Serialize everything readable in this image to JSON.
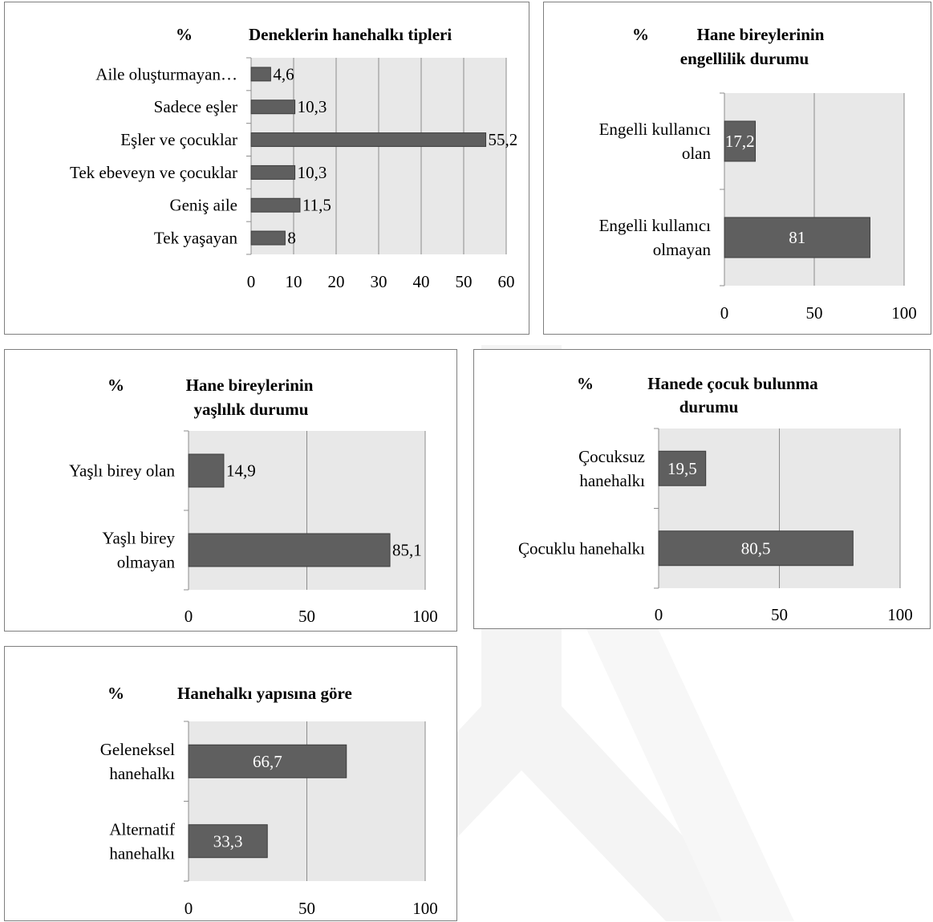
{
  "chart_data": [
    {
      "type": "bar",
      "orientation": "horizontal",
      "unit_label": "%",
      "title": "Deneklerin hanehalkı tipleri",
      "categories": [
        "Aile oluşturmayan…",
        "Sadece eşler",
        "Eşler ve çocuklar",
        "Tek ebeveyn ve çocuklar",
        "Geniş aile",
        "Tek yaşayan"
      ],
      "values": [
        4.6,
        10.3,
        55.2,
        10.3,
        11.5,
        8
      ],
      "value_labels": [
        "4,6",
        "10,3",
        "55,2",
        "10,3",
        "11,5",
        "8"
      ],
      "xlim": [
        0,
        60
      ],
      "ticks": [
        0,
        10,
        20,
        30,
        40,
        50,
        60
      ],
      "label_position": "outside",
      "bar_color": "#5f5f5f",
      "plot_bg": "#e8e8e8",
      "grid": true
    },
    {
      "type": "bar",
      "orientation": "horizontal",
      "unit_label": "%",
      "title_lines": [
        "Hane bireylerinin",
        "engellilik durumu"
      ],
      "categories": [
        [
          "Engelli kullanıcı",
          "olan"
        ],
        [
          "Engelli kullanıcı",
          "olmayan"
        ]
      ],
      "values": [
        17.2,
        81
      ],
      "value_labels": [
        "17,2",
        "81"
      ],
      "xlim": [
        0,
        100
      ],
      "ticks": [
        0,
        50,
        100
      ],
      "label_position": "inside",
      "bar_color": "#5f5f5f",
      "plot_bg": "#e8e8e8",
      "grid": true
    },
    {
      "type": "bar",
      "orientation": "horizontal",
      "unit_label": "%",
      "title_lines": [
        "Hane bireylerinin",
        "yaşlılık durumu"
      ],
      "categories": [
        [
          "Yaşlı birey olan"
        ],
        [
          "Yaşlı birey",
          "olmayan"
        ]
      ],
      "values": [
        14.9,
        85.1
      ],
      "value_labels": [
        "14,9",
        "85,1"
      ],
      "xlim": [
        0,
        100
      ],
      "ticks": [
        0,
        50,
        100
      ],
      "label_position": "outside",
      "bar_color": "#5f5f5f",
      "plot_bg": "#e8e8e8",
      "grid": true
    },
    {
      "type": "bar",
      "orientation": "horizontal",
      "unit_label": "%",
      "title_lines": [
        "Hanede çocuk bulunma",
        "durumu"
      ],
      "categories": [
        [
          "Çocuksuz",
          "hanehalkı"
        ],
        [
          "Çocuklu hanehalkı"
        ]
      ],
      "values": [
        19.5,
        80.5
      ],
      "value_labels": [
        "19,5",
        "80,5"
      ],
      "xlim": [
        0,
        100
      ],
      "ticks": [
        0,
        50,
        100
      ],
      "label_position": "inside",
      "bar_color": "#5f5f5f",
      "plot_bg": "#e8e8e8",
      "grid": true
    },
    {
      "type": "bar",
      "orientation": "horizontal",
      "unit_label": "%",
      "title": "Hanehalkı yapısına göre",
      "categories": [
        [
          "Geleneksel",
          "hanehalkı"
        ],
        [
          "Alternatif",
          "hanehalkı"
        ]
      ],
      "values": [
        66.7,
        33.3
      ],
      "value_labels": [
        "66,7",
        "33,3"
      ],
      "xlim": [
        0,
        100
      ],
      "ticks": [
        0,
        50,
        100
      ],
      "label_position": "inside",
      "bar_color": "#5f5f5f",
      "plot_bg": "#e8e8e8",
      "grid": true
    }
  ]
}
